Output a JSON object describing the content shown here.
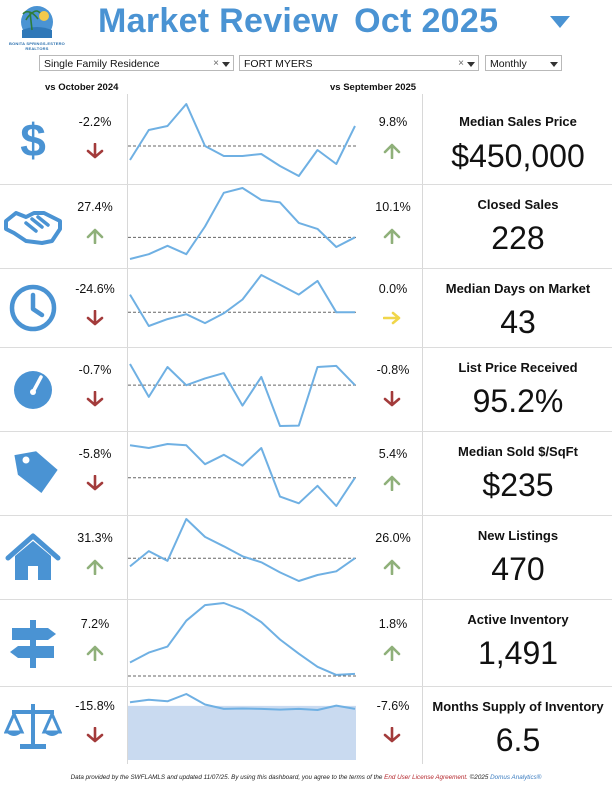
{
  "header": {
    "logo_text": "BONITA SPRINGS-ESTERO REALTORS",
    "title": "Market Review",
    "month": "Oct 2025"
  },
  "filters": {
    "property_type": "Single Family Residence",
    "city": "FORT MYERS",
    "period": "Monthly"
  },
  "columns": {
    "left": "vs October 2024",
    "right": "vs September 2025"
  },
  "colors": {
    "accent": "#4a93d3",
    "up": "#8fb07a",
    "down": "#a33b3b",
    "flat": "#f0d64a",
    "line": "#6fb0e3"
  },
  "rows": [
    {
      "icon": "dollar-icon",
      "yoy": "-2.2%",
      "yoy_dir": "down",
      "mom": "9.8%",
      "mom_dir": "up",
      "label": "Median Sales Price",
      "value": "$450,000",
      "spark": [
        0.83,
        0.98,
        1.0,
        1.11,
        0.9,
        0.85,
        0.85,
        0.86,
        0.8,
        0.75,
        0.88,
        0.81,
        1.0
      ],
      "ref": 0.9,
      "band": false
    },
    {
      "icon": "handshake-icon",
      "yoy": "27.4%",
      "yoy_dir": "up",
      "mom": "10.1%",
      "mom_dir": "up",
      "label": "Closed Sales",
      "value": "228",
      "spark": [
        0.6,
        0.64,
        0.71,
        0.64,
        0.87,
        1.15,
        1.19,
        1.09,
        1.07,
        0.9,
        0.85,
        0.7,
        0.78
      ],
      "ref": 0.78,
      "band": false
    },
    {
      "icon": "clock-icon",
      "yoy": "-24.6%",
      "yoy_dir": "down",
      "mom": "0.0%",
      "mom_dir": "flat",
      "label": "Median Days on Market",
      "value": "43",
      "spark": [
        1.18,
        0.86,
        0.93,
        0.98,
        0.89,
        0.99,
        1.13,
        1.38,
        1.28,
        1.18,
        1.32,
        1.0,
        1.0
      ],
      "ref": 1.0,
      "band": false
    },
    {
      "icon": "gauge-icon",
      "yoy": "-0.7%",
      "yoy_dir": "down",
      "mom": "-0.8%",
      "mom_dir": "down",
      "label": "List Price Received",
      "value": "95.2%",
      "spark": [
        0.98,
        0.9365,
        0.976,
        0.952,
        0.961,
        0.968,
        0.925,
        0.963,
        0.898,
        0.8985,
        0.976,
        0.9775,
        0.952
      ],
      "ref": 0.952,
      "band": false
    },
    {
      "icon": "price-tag-icon",
      "yoy": "-5.8%",
      "yoy_dir": "down",
      "mom": "5.4%",
      "mom_dir": "up",
      "label": "Median Sold $/SqFt",
      "value": "$235",
      "spark": [
        0.7,
        0.68,
        0.71,
        0.7,
        0.56,
        0.63,
        0.55,
        0.68,
        0.32,
        0.27,
        0.4,
        0.25,
        0.46
      ],
      "ref": 0.46,
      "band": false
    },
    {
      "icon": "house-icon",
      "yoy": "31.3%",
      "yoy_dir": "up",
      "mom": "26.0%",
      "mom_dir": "up",
      "label": "New Listings",
      "value": "470",
      "spark": [
        0.71,
        1.12,
        0.86,
        1.98,
        1.5,
        1.25,
        0.98,
        0.82,
        0.55,
        0.32,
        0.48,
        0.58,
        0.93
      ],
      "ref": 0.93,
      "band": false
    },
    {
      "icon": "signpost-icon",
      "yoy": "7.2%",
      "yoy_dir": "up",
      "mom": "1.8%",
      "mom_dir": "up",
      "label": "Active Inventory",
      "value": "1,491",
      "spark": [
        0.5,
        0.78,
        0.95,
        1.68,
        2.12,
        2.18,
        1.98,
        1.64,
        1.15,
        0.75,
        0.38,
        0.15,
        0.18
      ],
      "ref": 0.12,
      "band": false
    },
    {
      "icon": "scales-icon",
      "yoy": "-15.8%",
      "yoy_dir": "down",
      "mom": "-7.6%",
      "mom_dir": "down",
      "label": "Months Supply of Inventory",
      "value": "6.5",
      "spark": [
        7.4,
        7.75,
        7.55,
        8.55,
        7.1,
        6.5,
        6.55,
        6.5,
        6.4,
        6.5,
        6.35,
        6.95,
        6.5
      ],
      "ref": 6.5,
      "band": true
    }
  ],
  "footer": {
    "prefix": "Data provided by the SWFLAMLS and updated 11/07/25.  By using this dashboard, you agree to the terms of the ",
    "link": "End User License Agreement.",
    "copy": " ©2025 ",
    "brand": "Domus Analytics®"
  }
}
